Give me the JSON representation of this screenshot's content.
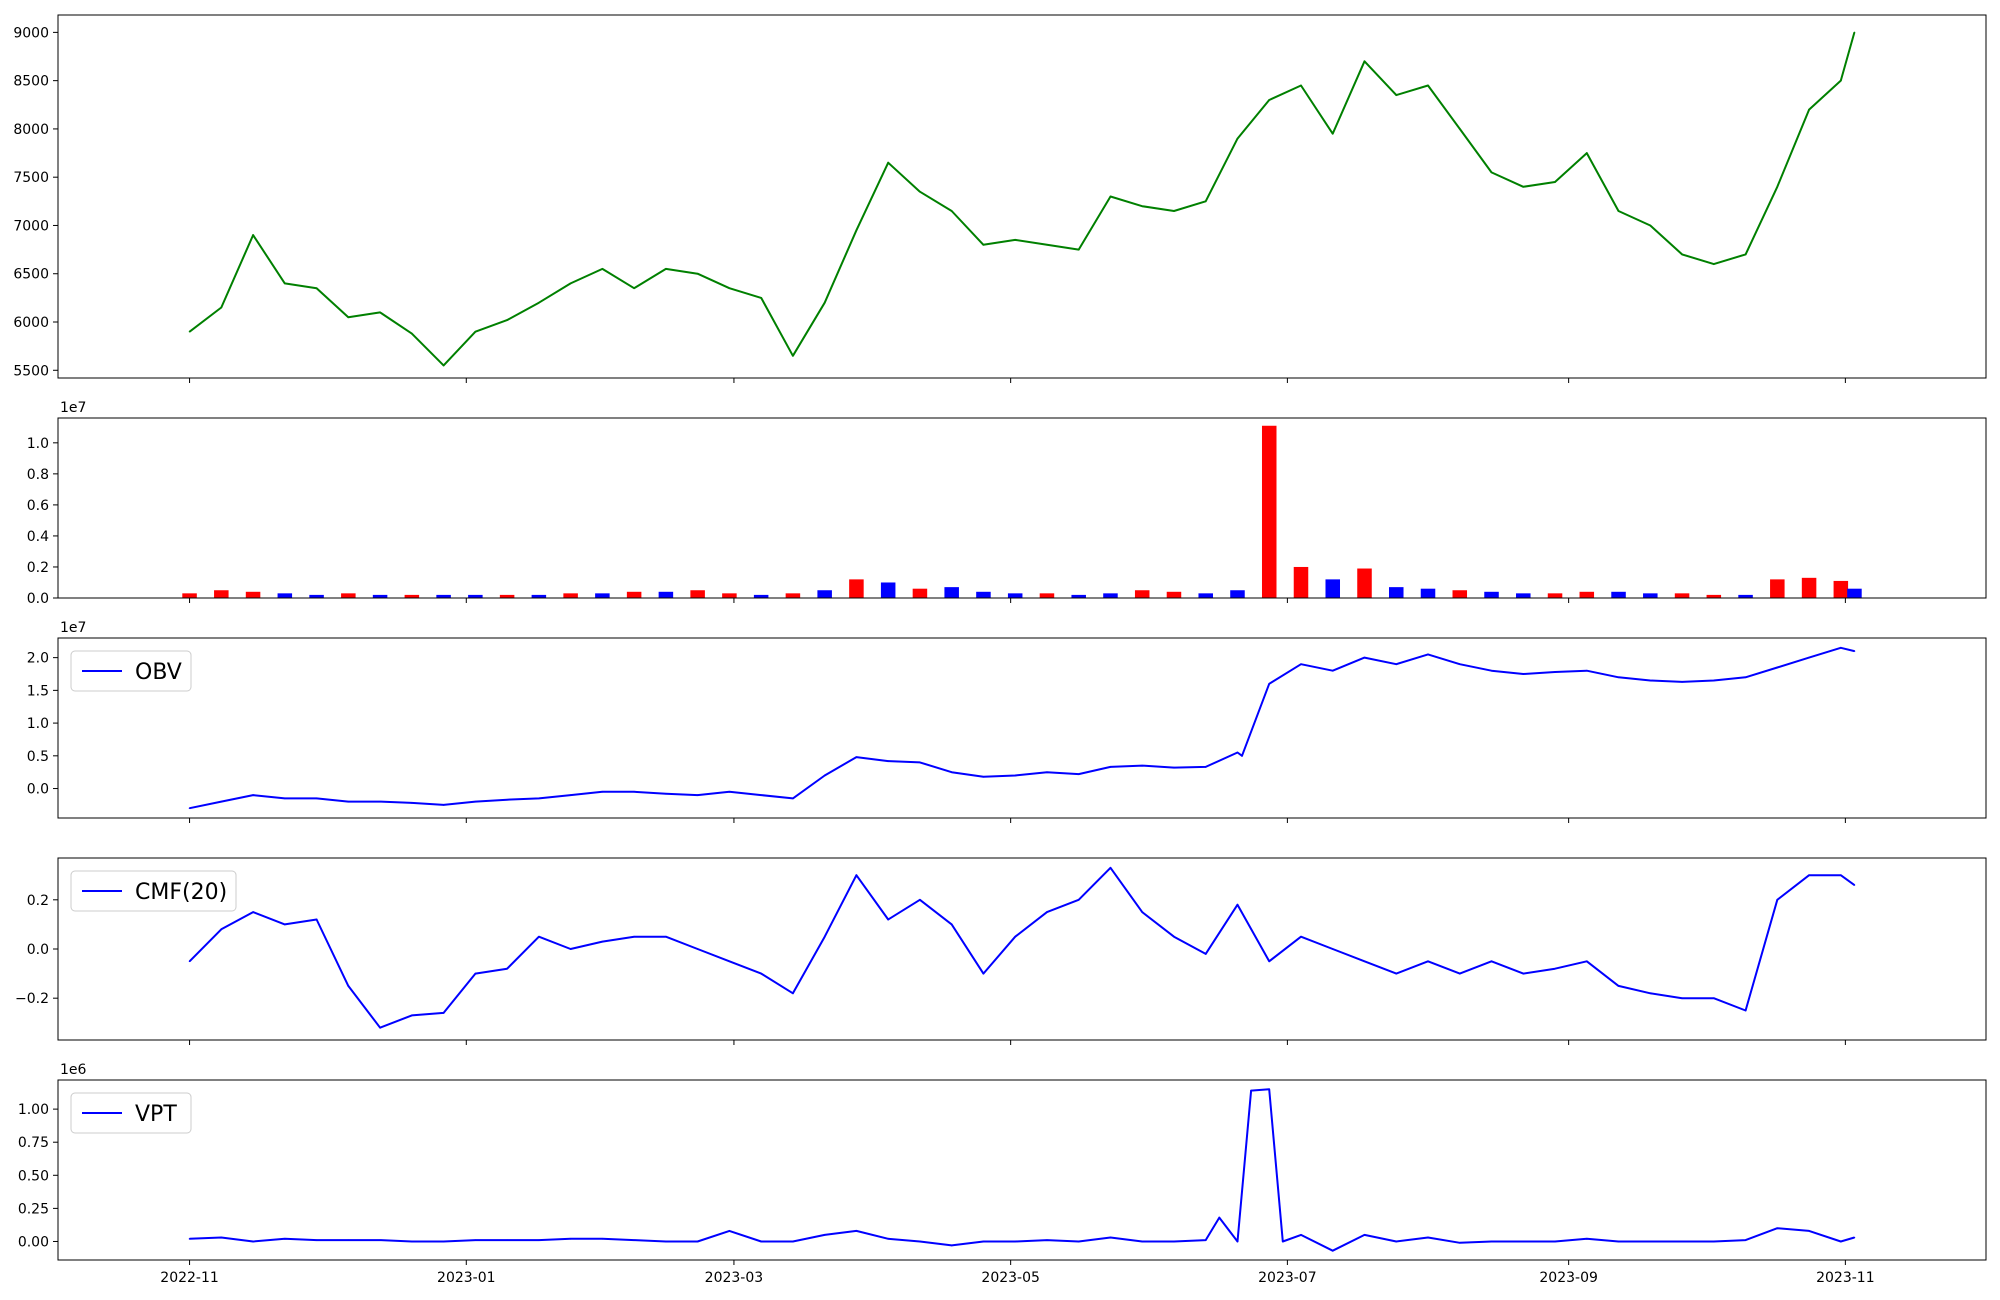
{
  "chart_data": [
    {
      "type": "line",
      "panel": "price",
      "title": "",
      "xlabel": "",
      "ylabel": "",
      "color": "#008000",
      "legend": null,
      "ylim": [
        5420,
        9180
      ],
      "yticks": [
        5500,
        6000,
        6500,
        7000,
        7500,
        8000,
        8500,
        9000
      ],
      "ytick_labels": [
        "5500",
        "6000",
        "6500",
        "7000",
        "7500",
        "8000",
        "8500",
        "9000"
      ],
      "x": [
        "2022-11-01",
        "2022-11-08",
        "2022-11-15",
        "2022-11-22",
        "2022-11-29",
        "2022-12-06",
        "2022-12-13",
        "2022-12-20",
        "2022-12-27",
        "2023-01-03",
        "2023-01-10",
        "2023-01-17",
        "2023-01-24",
        "2023-01-31",
        "2023-02-07",
        "2023-02-14",
        "2023-02-21",
        "2023-02-28",
        "2023-03-07",
        "2023-03-14",
        "2023-03-21",
        "2023-03-28",
        "2023-04-04",
        "2023-04-11",
        "2023-04-18",
        "2023-04-25",
        "2023-05-02",
        "2023-05-09",
        "2023-05-16",
        "2023-05-23",
        "2023-05-30",
        "2023-06-06",
        "2023-06-13",
        "2023-06-20",
        "2023-06-27",
        "2023-07-04",
        "2023-07-11",
        "2023-07-18",
        "2023-07-25",
        "2023-08-01",
        "2023-08-08",
        "2023-08-15",
        "2023-08-22",
        "2023-08-29",
        "2023-09-05",
        "2023-09-12",
        "2023-09-19",
        "2023-09-26",
        "2023-10-03",
        "2023-10-10",
        "2023-10-17",
        "2023-10-24",
        "2023-10-31",
        "2023-11-03"
      ],
      "values": [
        5900,
        6150,
        6900,
        6400,
        6350,
        6050,
        6100,
        5880,
        5550,
        5900,
        6020,
        6200,
        6400,
        6550,
        6350,
        6550,
        6500,
        6350,
        6250,
        5650,
        6200,
        6950,
        7650,
        7350,
        7150,
        6800,
        6850,
        6800,
        6750,
        7300,
        7200,
        7150,
        7250,
        7900,
        8300,
        8450,
        7950,
        8700,
        8350,
        8450,
        8000,
        7550,
        7400,
        7450,
        7750,
        7150,
        7000,
        6700,
        6600,
        6700,
        7400,
        8200,
        8500,
        9000
      ]
    },
    {
      "type": "bar",
      "panel": "volume",
      "title": "",
      "ylabel": "",
      "multiplier_label": "1e7",
      "ylim": [
        0,
        1.16
      ],
      "yticks": [
        0.0,
        0.2,
        0.4,
        0.6,
        0.8,
        1.0
      ],
      "ytick_labels": [
        "0.0",
        "0.2",
        "0.4",
        "0.6",
        "0.8",
        "1.0"
      ],
      "colors": {
        "up": "#ff0000",
        "down": "#0000ff",
        "flat": "#000000"
      },
      "x": [
        "2022-11-01",
        "2022-11-08",
        "2022-11-15",
        "2022-11-22",
        "2022-11-29",
        "2022-12-06",
        "2022-12-13",
        "2022-12-20",
        "2022-12-27",
        "2023-01-03",
        "2023-01-10",
        "2023-01-17",
        "2023-01-24",
        "2023-01-31",
        "2023-02-07",
        "2023-02-14",
        "2023-02-21",
        "2023-02-28",
        "2023-03-07",
        "2023-03-14",
        "2023-03-21",
        "2023-03-28",
        "2023-04-04",
        "2023-04-11",
        "2023-04-18",
        "2023-04-25",
        "2023-05-02",
        "2023-05-09",
        "2023-05-16",
        "2023-05-23",
        "2023-05-30",
        "2023-06-06",
        "2023-06-13",
        "2023-06-20",
        "2023-06-27",
        "2023-07-04",
        "2023-07-11",
        "2023-07-18",
        "2023-07-25",
        "2023-08-01",
        "2023-08-08",
        "2023-08-15",
        "2023-08-22",
        "2023-08-29",
        "2023-09-05",
        "2023-09-12",
        "2023-09-19",
        "2023-09-26",
        "2023-10-03",
        "2023-10-10",
        "2023-10-17",
        "2023-10-24",
        "2023-10-31",
        "2023-11-03"
      ],
      "values": [
        0.03,
        0.05,
        0.04,
        0.03,
        0.02,
        0.03,
        0.02,
        0.02,
        0.02,
        0.02,
        0.02,
        0.02,
        0.03,
        0.03,
        0.04,
        0.04,
        0.05,
        0.03,
        0.02,
        0.03,
        0.05,
        0.12,
        0.1,
        0.06,
        0.07,
        0.04,
        0.03,
        0.03,
        0.02,
        0.03,
        0.05,
        0.04,
        0.03,
        0.05,
        1.11,
        0.2,
        0.12,
        0.19,
        0.07,
        0.06,
        0.05,
        0.04,
        0.03,
        0.03,
        0.04,
        0.04,
        0.03,
        0.03,
        0.02,
        0.02,
        0.12,
        0.13,
        0.11,
        0.06
      ],
      "direction": [
        "up",
        "up",
        "up",
        "down",
        "down",
        "up",
        "down",
        "up",
        "down",
        "down",
        "up",
        "down",
        "up",
        "down",
        "up",
        "down",
        "up",
        "up",
        "down",
        "up",
        "down",
        "up",
        "down",
        "up",
        "down",
        "down",
        "down",
        "up",
        "down",
        "down",
        "up",
        "up",
        "down",
        "down",
        "up",
        "up",
        "down",
        "up",
        "down",
        "down",
        "up",
        "down",
        "down",
        "up",
        "up",
        "down",
        "down",
        "up",
        "up",
        "down",
        "up",
        "up",
        "up",
        "down"
      ]
    },
    {
      "type": "line",
      "panel": "obv",
      "multiplier_label": "1e7",
      "color": "#0000ff",
      "legend": "OBV",
      "ylim": [
        -0.45,
        2.3
      ],
      "yticks": [
        0.0,
        0.5,
        1.0,
        1.5,
        2.0
      ],
      "ytick_labels": [
        "0.0",
        "0.5",
        "1.0",
        "1.5",
        "2.0"
      ],
      "x": [
        "2022-11-01",
        "2022-11-08",
        "2022-11-15",
        "2022-11-22",
        "2022-11-29",
        "2022-12-06",
        "2022-12-13",
        "2022-12-20",
        "2022-12-27",
        "2023-01-03",
        "2023-01-10",
        "2023-01-17",
        "2023-01-24",
        "2023-01-31",
        "2023-02-07",
        "2023-02-14",
        "2023-02-21",
        "2023-02-28",
        "2023-03-07",
        "2023-03-14",
        "2023-03-21",
        "2023-03-28",
        "2023-04-04",
        "2023-04-11",
        "2023-04-18",
        "2023-04-25",
        "2023-05-02",
        "2023-05-09",
        "2023-05-16",
        "2023-05-23",
        "2023-05-30",
        "2023-06-06",
        "2023-06-13",
        "2023-06-20",
        "2023-06-21",
        "2023-06-27",
        "2023-07-04",
        "2023-07-11",
        "2023-07-18",
        "2023-07-25",
        "2023-08-01",
        "2023-08-08",
        "2023-08-15",
        "2023-08-22",
        "2023-08-29",
        "2023-09-05",
        "2023-09-12",
        "2023-09-19",
        "2023-09-26",
        "2023-10-03",
        "2023-10-10",
        "2023-10-17",
        "2023-10-24",
        "2023-10-31",
        "2023-11-03"
      ],
      "values": [
        -0.3,
        -0.2,
        -0.1,
        -0.15,
        -0.15,
        -0.2,
        -0.2,
        -0.22,
        -0.25,
        -0.2,
        -0.17,
        -0.15,
        -0.1,
        -0.05,
        -0.05,
        -0.08,
        -0.1,
        -0.05,
        -0.1,
        -0.15,
        0.2,
        0.48,
        0.42,
        0.4,
        0.25,
        0.18,
        0.2,
        0.25,
        0.22,
        0.33,
        0.35,
        0.32,
        0.33,
        0.55,
        0.5,
        1.6,
        1.9,
        1.8,
        2.0,
        1.9,
        2.05,
        1.9,
        1.8,
        1.75,
        1.78,
        1.8,
        1.7,
        1.65,
        1.63,
        1.65,
        1.7,
        1.85,
        2.0,
        2.15,
        2.1
      ]
    },
    {
      "type": "line",
      "panel": "cmf",
      "color": "#0000ff",
      "legend": "CMF(20)",
      "ylim": [
        -0.37,
        0.37
      ],
      "yticks": [
        -0.2,
        0.0,
        0.2
      ],
      "ytick_labels": [
        "−0.2",
        "0.0",
        "0.2"
      ],
      "x": [
        "2022-11-01",
        "2022-11-08",
        "2022-11-15",
        "2022-11-22",
        "2022-11-29",
        "2022-12-06",
        "2022-12-13",
        "2022-12-20",
        "2022-12-27",
        "2023-01-03",
        "2023-01-10",
        "2023-01-17",
        "2023-01-24",
        "2023-01-31",
        "2023-02-07",
        "2023-02-14",
        "2023-02-21",
        "2023-02-28",
        "2023-03-07",
        "2023-03-14",
        "2023-03-21",
        "2023-03-28",
        "2023-04-04",
        "2023-04-11",
        "2023-04-18",
        "2023-04-25",
        "2023-05-02",
        "2023-05-09",
        "2023-05-16",
        "2023-05-23",
        "2023-05-30",
        "2023-06-06",
        "2023-06-13",
        "2023-06-20",
        "2023-06-27",
        "2023-07-04",
        "2023-07-11",
        "2023-07-18",
        "2023-07-25",
        "2023-08-01",
        "2023-08-08",
        "2023-08-15",
        "2023-08-22",
        "2023-08-29",
        "2023-09-05",
        "2023-09-12",
        "2023-09-19",
        "2023-09-26",
        "2023-10-03",
        "2023-10-10",
        "2023-10-17",
        "2023-10-24",
        "2023-10-31",
        "2023-11-03"
      ],
      "values": [
        -0.05,
        0.08,
        0.15,
        0.1,
        0.12,
        -0.15,
        -0.32,
        -0.27,
        -0.26,
        -0.1,
        -0.08,
        0.05,
        0.0,
        0.03,
        0.05,
        0.05,
        0.0,
        -0.05,
        -0.1,
        -0.18,
        0.05,
        0.3,
        0.12,
        0.2,
        0.1,
        -0.1,
        0.05,
        0.15,
        0.2,
        0.33,
        0.15,
        0.05,
        -0.02,
        0.18,
        -0.05,
        0.05,
        0.0,
        -0.05,
        -0.1,
        -0.05,
        -0.1,
        -0.05,
        -0.1,
        -0.08,
        -0.05,
        -0.15,
        -0.18,
        -0.2,
        -0.2,
        -0.25,
        0.2,
        0.3,
        0.3,
        0.26
      ]
    },
    {
      "type": "line",
      "panel": "vpt",
      "multiplier_label": "1e6",
      "color": "#0000ff",
      "legend": "VPT",
      "xlabel": "",
      "ylim": [
        -0.14,
        1.22
      ],
      "yticks": [
        0.0,
        0.25,
        0.5,
        0.75,
        1.0
      ],
      "ytick_labels": [
        "0.00",
        "0.25",
        "0.50",
        "0.75",
        "1.00"
      ],
      "xticks": [
        "2022-11-01",
        "2023-01-01",
        "2023-03-01",
        "2023-05-01",
        "2023-07-01",
        "2023-09-01",
        "2023-11-01"
      ],
      "xtick_labels": [
        "2022-11",
        "2023-01",
        "2023-03",
        "2023-05",
        "2023-07",
        "2023-09",
        "2023-11"
      ],
      "x": [
        "2022-11-01",
        "2022-11-08",
        "2022-11-15",
        "2022-11-22",
        "2022-11-29",
        "2022-12-06",
        "2022-12-13",
        "2022-12-20",
        "2022-12-27",
        "2023-01-03",
        "2023-01-10",
        "2023-01-17",
        "2023-01-24",
        "2023-01-31",
        "2023-02-07",
        "2023-02-14",
        "2023-02-21",
        "2023-02-28",
        "2023-03-07",
        "2023-03-14",
        "2023-03-21",
        "2023-03-28",
        "2023-04-04",
        "2023-04-11",
        "2023-04-18",
        "2023-04-25",
        "2023-05-02",
        "2023-05-09",
        "2023-05-16",
        "2023-05-23",
        "2023-05-30",
        "2023-06-06",
        "2023-06-13",
        "2023-06-16",
        "2023-06-20",
        "2023-06-23",
        "2023-06-27",
        "2023-06-30",
        "2023-07-04",
        "2023-07-11",
        "2023-07-18",
        "2023-07-25",
        "2023-08-01",
        "2023-08-08",
        "2023-08-15",
        "2023-08-22",
        "2023-08-29",
        "2023-09-05",
        "2023-09-12",
        "2023-09-19",
        "2023-09-26",
        "2023-10-03",
        "2023-10-10",
        "2023-10-17",
        "2023-10-24",
        "2023-10-31",
        "2023-11-03"
      ],
      "values": [
        0.02,
        0.03,
        0.0,
        0.02,
        0.01,
        0.01,
        0.01,
        0.0,
        0.0,
        0.01,
        0.01,
        0.01,
        0.02,
        0.02,
        0.01,
        0.0,
        0.0,
        0.08,
        0.0,
        0.0,
        0.05,
        0.08,
        0.02,
        0.0,
        -0.03,
        0.0,
        0.0,
        0.01,
        0.0,
        0.03,
        0.0,
        0.0,
        0.01,
        0.18,
        0.0,
        1.14,
        1.15,
        0.0,
        0.05,
        -0.07,
        0.05,
        0.0,
        0.03,
        -0.01,
        0.0,
        0.0,
        0.0,
        0.02,
        0.0,
        0.0,
        0.0,
        0.0,
        0.01,
        0.1,
        0.08,
        0.0,
        0.03
      ]
    }
  ]
}
